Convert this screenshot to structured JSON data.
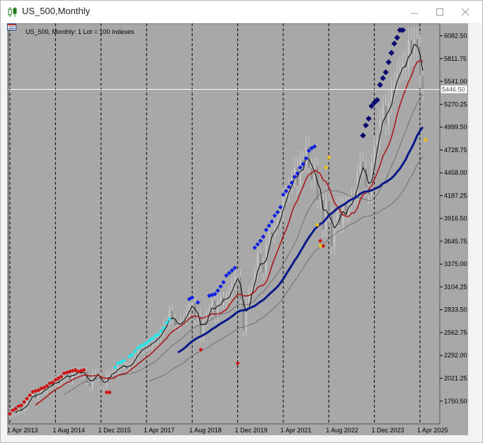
{
  "window": {
    "title": "US_500,Monthly",
    "icons": {
      "app": "candlestick-chart-icon",
      "minimize": "minimize-icon",
      "maximize": "maximize-icon",
      "close": "close-icon"
    }
  },
  "chart": {
    "legend": "US_500, Monthly:  1 Lot = 100 Indexes",
    "current_price_label": "5446.50",
    "colors": {
      "background": "#a8a8a8",
      "candles": "#c8c8c8",
      "ma_fast": "#000000",
      "ma_mid": "#aa1a1a",
      "ma_slow": "#0a1a8a",
      "ma_thin": "#4a4a4a",
      "price_line": "#ffffff"
    }
  },
  "chart_data": {
    "type": "candlestick",
    "ylim": [
      1480,
      6230
    ],
    "yticks": [
      "6082.50",
      "5811.75",
      "5541.00",
      "5270.25",
      "4999.50",
      "4728.75",
      "4458.00",
      "4187.25",
      "3916.50",
      "3645.75",
      "3375.00",
      "3104.25",
      "2833.50",
      "2562.75",
      "2292.00",
      "2021.25",
      "1750.50"
    ],
    "xticks": [
      "1 Apr 2013",
      "1 Aug 2014",
      "1 Dec 2015",
      "1 Apr 2017",
      "1 Aug 2018",
      "1 Dec 2019",
      "1 Apr 2021",
      "1 Aug 2022",
      "1 Dec 2023",
      "1 Apr 2025"
    ],
    "current_price": 5446.5,
    "closes": [
      1597,
      1631,
      1606,
      1686,
      1633,
      1682,
      1757,
      1806,
      1848,
      1783,
      1859,
      1872,
      1884,
      1924,
      1960,
      1931,
      2003,
      1972,
      2018,
      2067,
      2059,
      1995,
      2105,
      2086,
      2107,
      2063,
      2103,
      1972,
      1920,
      2079,
      2080,
      2044,
      1940,
      1932,
      2060,
      2065,
      2097,
      2099,
      2173,
      2170,
      2168,
      2126,
      2198,
      2238,
      2279,
      2363,
      2362,
      2384,
      2411,
      2423,
      2470,
      2472,
      2519,
      2575,
      2647,
      2674,
      2823,
      2714,
      2641,
      2648,
      2705,
      2718,
      2816,
      2901,
      2914,
      2711,
      2760,
      2506,
      2704,
      2784,
      2834,
      2946,
      2752,
      2941,
      2980,
      2926,
      2976,
      3038,
      3141,
      3230,
      3226,
      2954,
      2585,
      2912,
      3044,
      3100,
      3271,
      3500,
      3363,
      3270,
      3622,
      3756,
      3714,
      3811,
      3901,
      3973,
      4181,
      4204,
      4297,
      4395,
      4523,
      4307,
      4605,
      4567,
      4766,
      4516,
      4374,
      4530,
      4132,
      4132,
      3785,
      4130,
      3955,
      3585,
      3872,
      4080,
      3840,
      4077,
      3970,
      4109,
      4169,
      4180,
      4450,
      4589,
      4508,
      4288,
      4194,
      4568,
      4770,
      4846,
      5096,
      5254,
      5036,
      5278,
      5460,
      5522,
      5648,
      5705,
      5762,
      5705,
      6032,
      5881,
      6040,
      5955,
      5612,
      5446
    ],
    "ma_note": "fast=3, mid=10, slow=20 period moving averages",
    "markers": {
      "red": [
        [
          0,
          1600
        ],
        [
          1,
          1640
        ],
        [
          2,
          1660
        ],
        [
          3,
          1690
        ],
        [
          4,
          1700
        ],
        [
          5,
          1740
        ],
        [
          6,
          1780
        ],
        [
          7,
          1820
        ],
        [
          8,
          1860
        ],
        [
          9,
          1870
        ],
        [
          10,
          1880
        ],
        [
          11,
          1900
        ],
        [
          12,
          1910
        ],
        [
          13,
          1930
        ],
        [
          14,
          1960
        ],
        [
          15,
          1970
        ],
        [
          16,
          2000
        ],
        [
          17,
          2020
        ],
        [
          18,
          2040
        ],
        [
          19,
          2080
        ],
        [
          20,
          2090
        ],
        [
          21,
          2100
        ],
        [
          22,
          2110
        ],
        [
          23,
          2120
        ],
        [
          24,
          2100
        ],
        [
          25,
          2110
        ],
        [
          26,
          2120
        ],
        [
          34,
          1855
        ],
        [
          35,
          1855
        ],
        [
          67,
          2360
        ],
        [
          80,
          2200
        ],
        [
          109,
          3650
        ],
        [
          110,
          3590
        ]
      ],
      "cyan": [
        [
          37,
          2150
        ],
        [
          38,
          2200
        ],
        [
          39,
          2210
        ],
        [
          40,
          2230
        ],
        [
          42,
          2280
        ],
        [
          43,
          2300
        ],
        [
          44,
          2340
        ],
        [
          45,
          2380
        ],
        [
          46,
          2400
        ],
        [
          47,
          2420
        ],
        [
          48,
          2440
        ],
        [
          49,
          2470
        ],
        [
          50,
          2490
        ],
        [
          51,
          2520
        ],
        [
          52,
          2540
        ],
        [
          53,
          2580
        ],
        [
          54,
          2620
        ],
        [
          55,
          2680
        ],
        [
          56,
          2720
        ]
      ],
      "blue": [
        [
          63,
          2960
        ],
        [
          64,
          2980
        ],
        [
          66,
          2920
        ],
        [
          70,
          3000
        ],
        [
          71,
          3010
        ],
        [
          72,
          3020
        ],
        [
          73,
          3060
        ],
        [
          74,
          3110
        ],
        [
          75,
          3160
        ],
        [
          76,
          3240
        ],
        [
          77,
          3270
        ],
        [
          78,
          3300
        ],
        [
          79,
          3330
        ],
        [
          86,
          3570
        ],
        [
          87,
          3610
        ],
        [
          88,
          3650
        ],
        [
          89,
          3700
        ],
        [
          90,
          3780
        ],
        [
          91,
          3830
        ],
        [
          92,
          3880
        ],
        [
          93,
          3950
        ],
        [
          94,
          3990
        ],
        [
          95,
          4050
        ],
        [
          96,
          4200
        ],
        [
          97,
          4240
        ],
        [
          98,
          4290
        ],
        [
          99,
          4340
        ],
        [
          100,
          4410
        ],
        [
          101,
          4450
        ],
        [
          102,
          4520
        ],
        [
          103,
          4560
        ],
        [
          104,
          4630
        ],
        [
          105,
          4720
        ],
        [
          106,
          4750
        ],
        [
          107,
          4770
        ]
      ],
      "yellow": [
        [
          108,
          3840
        ],
        [
          109,
          3590
        ],
        [
          111,
          4520
        ],
        [
          112,
          4640
        ],
        [
          146,
          4850
        ]
      ],
      "navy": [
        [
          124,
          4900
        ],
        [
          125,
          5020
        ],
        [
          126,
          5100
        ],
        [
          127,
          5250
        ],
        [
          128,
          5290
        ],
        [
          129,
          5320
        ],
        [
          130,
          5500
        ],
        [
          131,
          5580
        ],
        [
          132,
          5650
        ],
        [
          133,
          5770
        ],
        [
          134,
          5880
        ],
        [
          135,
          5990
        ],
        [
          136,
          6060
        ],
        [
          137,
          6150
        ],
        [
          138,
          6150
        ]
      ]
    }
  }
}
